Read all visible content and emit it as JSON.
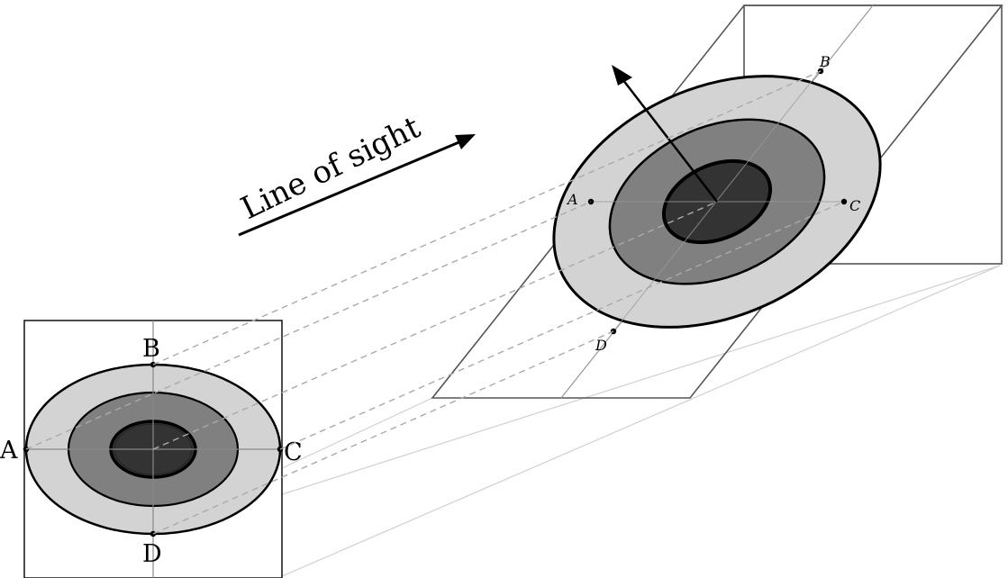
{
  "caption": "Line of sight",
  "front_view": {
    "labels": {
      "a": "A",
      "b": "B",
      "c": "C",
      "d": "D"
    }
  },
  "inclined_view": {
    "labels": {
      "a": "A",
      "b": "B",
      "c": "C",
      "d": "D"
    }
  },
  "colors": {
    "outer_fill": "#d3d3d3",
    "middle_fill": "#808080",
    "core_fill": "#333333",
    "stroke": "#000000",
    "frame": "#555555",
    "guide": "#999999",
    "projection_dash": "#aaaaaa",
    "ground_line": "#d0d0d0"
  }
}
